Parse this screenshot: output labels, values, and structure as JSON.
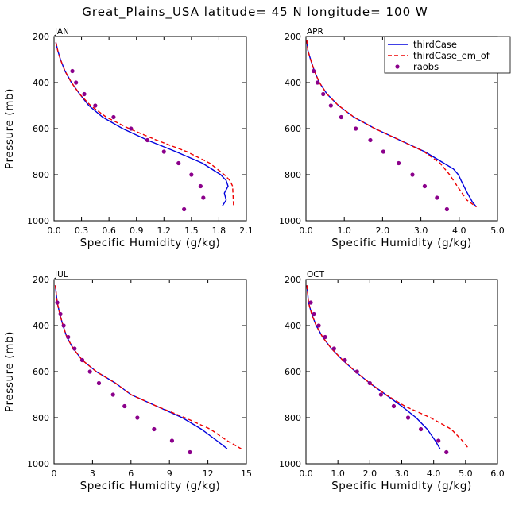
{
  "figure_title": "Great_Plains_USA  latitude= 45 N longitude= 100 W",
  "chart_data": [
    {
      "type": "line",
      "panel": "JAN",
      "xlabel": "Specific Humidity (g/kg)",
      "ylabel": "Pressure (mb)",
      "xlim": [
        0,
        2.1
      ],
      "xticks": [
        0.0,
        0.3,
        0.6,
        0.9,
        1.2,
        1.5,
        1.8,
        2.1
      ],
      "xtick_labels": [
        "0.0",
        "0.3",
        "0.6",
        "0.9",
        "1.2",
        "1.5",
        "1.8",
        "2.1"
      ],
      "ylim": [
        200,
        1000
      ],
      "yticks": [
        200,
        400,
        600,
        800,
        1000
      ],
      "y_inverted": true,
      "legend": false,
      "series": [
        {
          "name": "thirdCase",
          "color": "#0000dd",
          "style": "solid",
          "x": [
            0.02,
            0.04,
            0.07,
            0.12,
            0.19,
            0.28,
            0.38,
            0.53,
            0.75,
            1.02,
            1.33,
            1.62,
            1.82,
            1.88,
            1.9,
            1.86,
            1.88,
            1.84
          ],
          "y": [
            225,
            260,
            300,
            350,
            400,
            450,
            500,
            550,
            600,
            650,
            700,
            750,
            800,
            825,
            850,
            880,
            910,
            935
          ]
        },
        {
          "name": "thirdCase_em_of",
          "color": "#ee0000",
          "style": "dashed",
          "x": [
            0.02,
            0.04,
            0.07,
            0.12,
            0.19,
            0.28,
            0.4,
            0.57,
            0.82,
            1.12,
            1.45,
            1.7,
            1.86,
            1.92,
            1.95,
            1.96
          ],
          "y": [
            225,
            260,
            300,
            350,
            400,
            450,
            500,
            550,
            600,
            650,
            700,
            750,
            800,
            825,
            850,
            935
          ]
        },
        {
          "name": "raobs",
          "color": "#8b008b",
          "style": "markers",
          "x": [
            0.2,
            0.24,
            0.33,
            0.45,
            0.65,
            0.84,
            1.02,
            1.2,
            1.36,
            1.5,
            1.6,
            1.63,
            1.42
          ],
          "y": [
            350,
            400,
            450,
            500,
            550,
            600,
            650,
            700,
            750,
            800,
            850,
            900,
            950
          ]
        }
      ]
    },
    {
      "type": "line",
      "panel": "APR",
      "xlabel": "Specific Humidity (g/kg)",
      "ylabel": "",
      "xlim": [
        0,
        5.0
      ],
      "xticks": [
        0.0,
        1.0,
        2.0,
        3.0,
        4.0,
        5.0
      ],
      "xtick_labels": [
        "0.0",
        "1.0",
        "2.0",
        "3.0",
        "4.0",
        "5.0"
      ],
      "ylim": [
        200,
        1000
      ],
      "yticks": [
        200,
        400,
        600,
        800,
        1000
      ],
      "y_inverted": true,
      "legend": true,
      "legend_position": "top-right",
      "series": [
        {
          "name": "thirdCase",
          "color": "#0000dd",
          "style": "solid",
          "x": [
            0.02,
            0.05,
            0.12,
            0.22,
            0.35,
            0.55,
            0.85,
            1.25,
            1.8,
            2.45,
            3.1,
            3.6,
            3.85,
            3.98,
            4.05,
            4.2,
            4.35,
            4.45
          ],
          "y": [
            215,
            260,
            300,
            350,
            400,
            450,
            500,
            550,
            600,
            650,
            700,
            750,
            775,
            800,
            825,
            875,
            920,
            940
          ]
        },
        {
          "name": "thirdCase_em_of",
          "color": "#ee0000",
          "style": "dashed",
          "x": [
            0.02,
            0.05,
            0.12,
            0.22,
            0.35,
            0.55,
            0.85,
            1.25,
            1.8,
            2.45,
            3.08,
            3.5,
            3.75,
            3.95,
            4.2,
            4.45
          ],
          "y": [
            215,
            260,
            300,
            350,
            400,
            450,
            500,
            550,
            600,
            650,
            700,
            750,
            800,
            850,
            910,
            940
          ]
        },
        {
          "name": "raobs",
          "color": "#8b008b",
          "style": "markers",
          "x": [
            0.2,
            0.3,
            0.45,
            0.65,
            0.92,
            1.3,
            1.68,
            2.02,
            2.42,
            2.78,
            3.1,
            3.42,
            3.68
          ],
          "y": [
            350,
            400,
            450,
            500,
            550,
            600,
            650,
            700,
            750,
            800,
            850,
            900,
            950
          ]
        }
      ]
    },
    {
      "type": "line",
      "panel": "JUL",
      "xlabel": "Specific Humidity (g/kg)",
      "ylabel": "Pressure (mb)",
      "xlim": [
        0,
        15
      ],
      "xticks": [
        0,
        3,
        6,
        9,
        12,
        15
      ],
      "xtick_labels": [
        "0",
        "3",
        "6",
        "9",
        "12",
        "15"
      ],
      "ylim": [
        200,
        1000
      ],
      "yticks": [
        200,
        400,
        600,
        800,
        1000
      ],
      "y_inverted": true,
      "legend": false,
      "series": [
        {
          "name": "thirdCase",
          "color": "#0000dd",
          "style": "solid",
          "x": [
            0.1,
            0.25,
            0.45,
            0.7,
            1.0,
            1.5,
            2.2,
            3.3,
            4.8,
            6.0,
            8.0,
            10.0,
            11.5,
            12.7,
            13.5
          ],
          "y": [
            225,
            300,
            350,
            400,
            450,
            500,
            550,
            600,
            650,
            700,
            750,
            800,
            850,
            900,
            935
          ]
        },
        {
          "name": "thirdCase_em_of",
          "color": "#ee0000",
          "style": "dashed",
          "x": [
            0.1,
            0.25,
            0.45,
            0.7,
            1.0,
            1.5,
            2.2,
            3.3,
            4.8,
            6.0,
            8.0,
            10.2,
            12.2,
            13.5,
            14.6
          ],
          "y": [
            225,
            300,
            350,
            400,
            450,
            500,
            550,
            600,
            650,
            700,
            750,
            800,
            850,
            900,
            935
          ]
        },
        {
          "name": "raobs",
          "color": "#8b008b",
          "style": "markers",
          "x": [
            0.25,
            0.5,
            0.75,
            1.1,
            1.6,
            2.2,
            2.8,
            3.5,
            4.6,
            5.5,
            6.5,
            7.8,
            9.2,
            10.6
          ],
          "y": [
            300,
            350,
            400,
            450,
            500,
            550,
            600,
            650,
            700,
            750,
            800,
            850,
            900,
            950
          ]
        }
      ]
    },
    {
      "type": "line",
      "panel": "OCT",
      "xlabel": "Specific Humidity (g/kg)",
      "ylabel": "",
      "xlim": [
        0,
        6.0
      ],
      "xticks": [
        0.0,
        1.0,
        2.0,
        3.0,
        4.0,
        5.0,
        6.0
      ],
      "xtick_labels": [
        "0.0",
        "1.0",
        "2.0",
        "3.0",
        "4.0",
        "5.0",
        "6.0"
      ],
      "ylim": [
        200,
        1000
      ],
      "yticks": [
        200,
        400,
        600,
        800,
        1000
      ],
      "y_inverted": true,
      "legend": false,
      "series": [
        {
          "name": "thirdCase",
          "color": "#0000dd",
          "style": "solid",
          "x": [
            0.03,
            0.08,
            0.18,
            0.32,
            0.52,
            0.8,
            1.15,
            1.55,
            2.0,
            2.5,
            3.0,
            3.45,
            3.8,
            4.05,
            4.2
          ],
          "y": [
            225,
            300,
            350,
            400,
            450,
            500,
            550,
            600,
            650,
            700,
            750,
            800,
            850,
            900,
            935
          ]
        },
        {
          "name": "thirdCase_em_of",
          "color": "#ee0000",
          "style": "dashed",
          "x": [
            0.03,
            0.08,
            0.18,
            0.32,
            0.52,
            0.8,
            1.15,
            1.55,
            2.0,
            2.5,
            3.1,
            3.9,
            4.55,
            4.9,
            5.1
          ],
          "y": [
            225,
            300,
            350,
            400,
            450,
            500,
            550,
            600,
            650,
            700,
            750,
            800,
            850,
            900,
            935
          ]
        },
        {
          "name": "raobs",
          "color": "#8b008b",
          "style": "markers",
          "x": [
            0.15,
            0.25,
            0.4,
            0.6,
            0.88,
            1.22,
            1.6,
            2.0,
            2.35,
            2.75,
            3.2,
            3.6,
            4.15,
            4.4
          ],
          "y": [
            300,
            350,
            400,
            450,
            500,
            550,
            600,
            650,
            700,
            750,
            800,
            850,
            900,
            950
          ]
        }
      ]
    }
  ]
}
